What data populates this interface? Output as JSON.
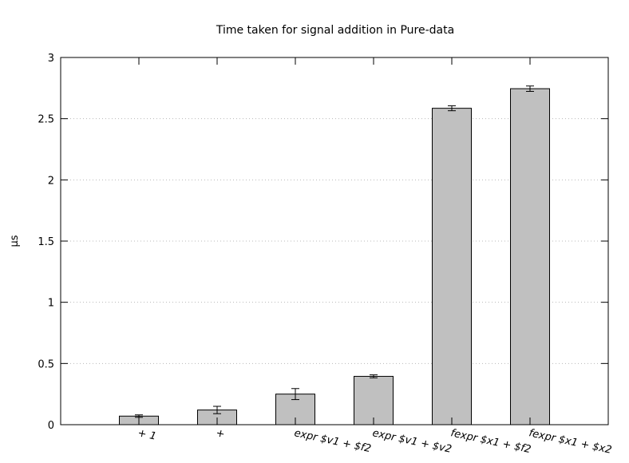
{
  "chart_data": {
    "type": "bar",
    "title": "Time taken for signal addition in Pure-data",
    "xlabel": "",
    "ylabel": "µs",
    "categories": [
      "+ 1",
      "+",
      "expr $v1 + $f2",
      "expr $v1 + $v2",
      "fexpr $x1 + $f2",
      "fexpr $x1 + $x2"
    ],
    "values": [
      0.07,
      0.12,
      0.25,
      0.395,
      2.585,
      2.745
    ],
    "errors": [
      0.01,
      0.03,
      0.045,
      0.012,
      0.02,
      0.022
    ],
    "ylim": [
      0,
      3
    ],
    "yticks": [
      0,
      0.5,
      1,
      1.5,
      2,
      2.5,
      3
    ],
    "ytick_labels": [
      "0",
      "0.5",
      "1",
      "1.5",
      "2",
      "2.5",
      "3"
    ],
    "grid": "horizontal dotted",
    "legend": "none",
    "bar_color": "#c0c0c0"
  }
}
